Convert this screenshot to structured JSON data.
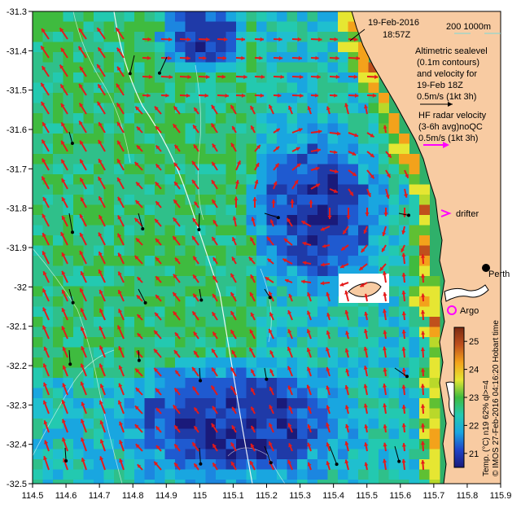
{
  "header": {
    "date": "19-Feb-2016",
    "time": "18:57Z",
    "depth_contours": "200  1000m"
  },
  "legend": {
    "altimetry": [
      "Altimetric sealevel",
      "(0.1m contours)",
      "and velocity for",
      "19-Feb 18Z",
      "0.5m/s (1kt 3h)"
    ],
    "hf_radar": [
      "HF radar velocity",
      "(3-6h avg)noQC",
      "0.5m/s (1kt 3h)"
    ],
    "drifter": "drifter",
    "argo": "Argo",
    "perth": "Perth",
    "hobart_time": "Hobart time"
  },
  "colorbar": {
    "title": "Temp. (°C) n19 62% ql>=4",
    "ticks": [
      "25",
      "24",
      "23",
      "22",
      "21"
    ],
    "stops": [
      "#1a1a7a",
      "#1f44c8",
      "#19a6e0",
      "#23c9b0",
      "#3fbb3f",
      "#e6e632",
      "#f3a21b",
      "#c0501c",
      "#7a2a12"
    ]
  },
  "credit": "© IMOS 27-Feb-2016 04:16:20 Hobart time",
  "colors": {
    "land": "#f8cba2",
    "altimetry_arrow": "#e41a1a",
    "hf_arrow": "#000000",
    "drifter": "#ff00ff",
    "argo": "#ff00ff",
    "contour": "#ffffff"
  },
  "axes": {
    "x_ticks": [
      "114.5",
      "114.6",
      "114.7",
      "114.8",
      "114.9",
      "115",
      "115.1",
      "115.2",
      "115.3",
      "115.4",
      "115.5",
      "115.6",
      "115.7",
      "115.8",
      "115.9"
    ],
    "y_ticks": [
      "-31.3",
      "-31.4",
      "-31.5",
      "-31.6",
      "-31.7",
      "-31.8",
      "-31.9",
      "-32",
      "-32.1",
      "-32.2",
      "-32.3",
      "-32.4",
      "-32.5"
    ],
    "xlim": [
      114.5,
      115.9
    ],
    "ylim": [
      -32.5,
      -31.3
    ]
  }
}
